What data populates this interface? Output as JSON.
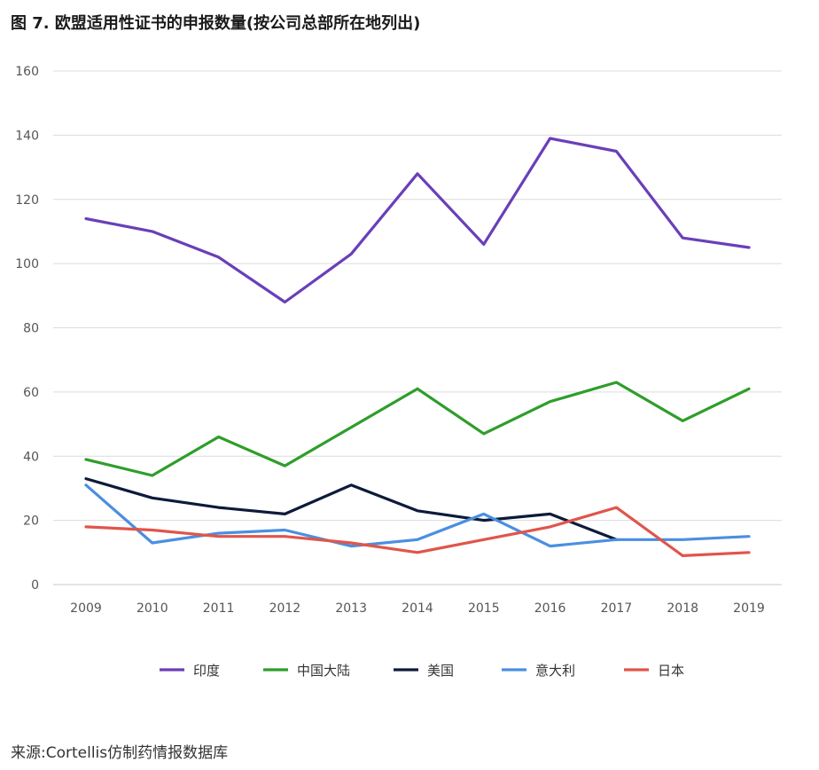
{
  "title": "图 7. 欧盟适用性证书的申报数量(按公司总部所在地列出)",
  "source": "来源:Cortellis仿制药情报数据库",
  "chart_data": {
    "type": "line",
    "title": "图 7. 欧盟适用性证书的申报数量(按公司总部所在地列出)",
    "xlabel": "",
    "ylabel": "",
    "x": [
      "2009",
      "2010",
      "2011",
      "2012",
      "2013",
      "2014",
      "2015",
      "2016",
      "2017",
      "2018",
      "2019"
    ],
    "ylim": [
      0,
      160
    ],
    "yticks": [
      0,
      20,
      40,
      60,
      80,
      100,
      120,
      140,
      160
    ],
    "grid": true,
    "legend_position": "bottom",
    "series": [
      {
        "name": "印度",
        "color": "#6a3fb8",
        "values": [
          114,
          110,
          102,
          88,
          103,
          128,
          106,
          139,
          135,
          108,
          105
        ]
      },
      {
        "name": "中国大陆",
        "color": "#2e9e2a",
        "values": [
          39,
          34,
          46,
          37,
          49,
          61,
          47,
          57,
          63,
          51,
          61
        ]
      },
      {
        "name": "美国",
        "color": "#0d1b3a",
        "values": [
          33,
          27,
          24,
          22,
          31,
          23,
          20,
          22,
          14,
          null,
          null
        ]
      },
      {
        "name": "意大利",
        "color": "#4a8fe0",
        "values": [
          31,
          13,
          16,
          17,
          12,
          14,
          22,
          12,
          14,
          14,
          15
        ]
      },
      {
        "name": "日本",
        "color": "#e0554a",
        "values": [
          18,
          17,
          15,
          15,
          13,
          10,
          14,
          18,
          24,
          9,
          10
        ]
      }
    ]
  }
}
